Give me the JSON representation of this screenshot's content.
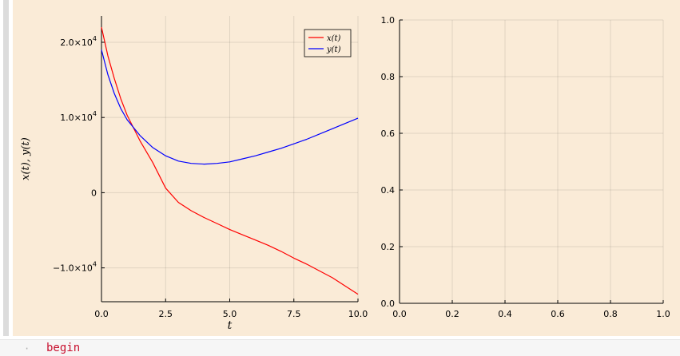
{
  "background_color": "#faebd7",
  "code": {
    "bullet": "·",
    "line": "begin"
  },
  "chart_data": [
    {
      "type": "line",
      "title": "",
      "xlabel": "t",
      "ylabel": "x(t), y(t)",
      "xlim": [
        0,
        10
      ],
      "ylim": [
        -14500,
        23500
      ],
      "xticks": [
        0,
        2.5,
        5,
        7.5,
        10
      ],
      "xtick_labels": [
        "0.0",
        "2.5",
        "5.0",
        "7.5",
        "10.0"
      ],
      "yticks": [
        -10000,
        0,
        10000,
        20000
      ],
      "ytick_labels": [
        {
          "base": "−1.0×10",
          "exp": "4"
        },
        {
          "base": "0",
          "exp": ""
        },
        {
          "base": "1.0×10",
          "exp": "4"
        },
        {
          "base": "2.0×10",
          "exp": "4"
        }
      ],
      "grid": true,
      "legend": "top-right",
      "series": [
        {
          "name": "x(t)",
          "color": "#ff0000",
          "x": [
            0,
            0.25,
            0.5,
            0.75,
            1.0,
            1.5,
            2.0,
            2.5,
            3.0,
            3.5,
            4.0,
            4.5,
            5.0,
            5.5,
            6.0,
            6.5,
            7.0,
            7.5,
            8.0,
            8.5,
            9.0,
            9.5,
            10.0
          ],
          "values": [
            22000,
            18200,
            15200,
            12500,
            10300,
            6900,
            4000,
            600,
            -1300,
            -2400,
            -3300,
            -4100,
            -4900,
            -5600,
            -6300,
            -7000,
            -7800,
            -8700,
            -9500,
            -10400,
            -11300,
            -12400,
            -13500
          ]
        },
        {
          "name": "y(t)",
          "color": "#0000ff",
          "x": [
            0,
            0.25,
            0.5,
            0.75,
            1.0,
            1.5,
            2.0,
            2.5,
            3.0,
            3.5,
            4.0,
            4.5,
            5.0,
            5.5,
            6.0,
            6.5,
            7.0,
            7.5,
            8.0,
            8.5,
            9.0,
            9.5,
            10.0
          ],
          "values": [
            19000,
            15700,
            13200,
            11200,
            9700,
            7600,
            6000,
            4900,
            4200,
            3900,
            3800,
            3900,
            4100,
            4500,
            4900,
            5400,
            5900,
            6500,
            7100,
            7800,
            8500,
            9200,
            9900
          ]
        }
      ]
    },
    {
      "type": "line",
      "title": "",
      "xlabel": "",
      "ylabel": "",
      "xlim": [
        0,
        1
      ],
      "ylim": [
        0,
        1
      ],
      "xticks": [
        0,
        0.2,
        0.4,
        0.6,
        0.8,
        1.0
      ],
      "xtick_labels": [
        "0.0",
        "0.2",
        "0.4",
        "0.6",
        "0.8",
        "1.0"
      ],
      "yticks": [
        0,
        0.2,
        0.4,
        0.6,
        0.8,
        1.0
      ],
      "ytick_labels": [
        "0.0",
        "0.2",
        "0.4",
        "0.6",
        "0.8",
        "1.0"
      ],
      "grid": true,
      "series": []
    }
  ]
}
